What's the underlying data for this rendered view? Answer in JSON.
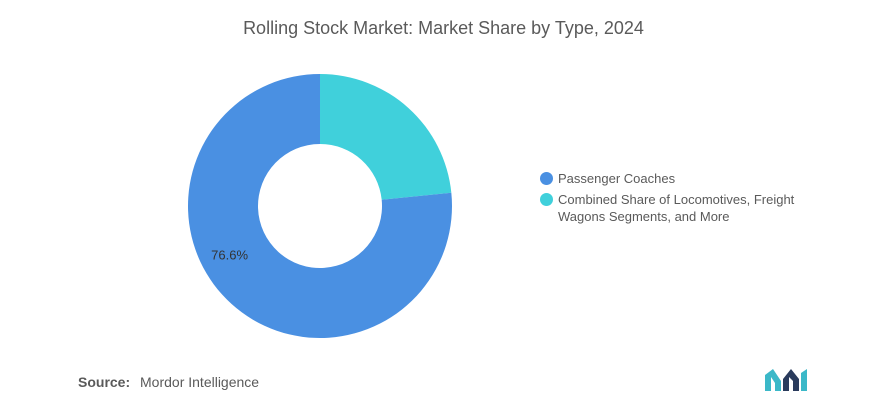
{
  "chart_data": {
    "type": "pie",
    "style": "donut",
    "title": "Rolling Stock Market: Market Share by Type, 2024",
    "slices": [
      {
        "label": "Passenger Coaches",
        "value": 76.6,
        "color": "#4a90e2",
        "data_label": "76.6%"
      },
      {
        "label": "Combined Share of Locomotives, Freight Wagons Segments, and More",
        "value": 23.4,
        "color": "#40d0db",
        "data_label": ""
      }
    ],
    "legend_placement": "right"
  },
  "source": {
    "label": "Source:",
    "text": "Mordor Intelligence"
  },
  "logo": {
    "icon": "mordor-intelligence-logo-icon",
    "colors": [
      "#2a3b5c",
      "#3bb8c8"
    ]
  }
}
